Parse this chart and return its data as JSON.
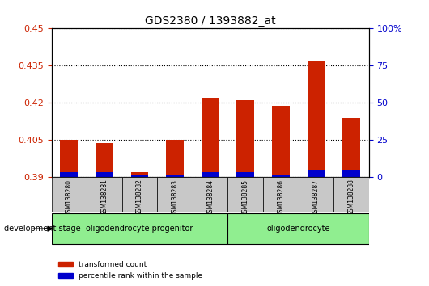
{
  "title": "GDS2380 / 1393882_at",
  "samples": [
    "GSM138280",
    "GSM138281",
    "GSM138282",
    "GSM138283",
    "GSM138284",
    "GSM138285",
    "GSM138286",
    "GSM138287",
    "GSM138288"
  ],
  "red_values": [
    0.405,
    0.404,
    0.392,
    0.405,
    0.422,
    0.421,
    0.419,
    0.437,
    0.414
  ],
  "blue_values": [
    0.392,
    0.392,
    0.391,
    0.391,
    0.392,
    0.392,
    0.391,
    0.393,
    0.393
  ],
  "baseline": 0.39,
  "ylim": [
    0.39,
    0.45
  ],
  "yticks_left": [
    0.39,
    0.405,
    0.42,
    0.435,
    0.45
  ],
  "yticks_right": [
    0,
    25,
    50,
    75,
    100
  ],
  "groups": [
    {
      "label": "oligodendrocyte progenitor",
      "start": 0,
      "end": 4,
      "color": "#90EE90"
    },
    {
      "label": "oligodendrocyte",
      "start": 5,
      "end": 8,
      "color": "#90EE90"
    }
  ],
  "group_separator": 4.5,
  "stage_label": "development stage",
  "legend_items": [
    {
      "color": "#CC2200",
      "label": "transformed count"
    },
    {
      "color": "#0000CC",
      "label": "percentile rank within the sample"
    }
  ],
  "bar_color_red": "#CC2200",
  "bar_color_blue": "#0000CC",
  "tick_color_left": "#CC2200",
  "tick_color_right": "#0000CC",
  "xticklabel_bg": "#C8C8C8",
  "plot_bg": "#FFFFFF",
  "grid_style": "dotted",
  "grid_color": "#000000"
}
